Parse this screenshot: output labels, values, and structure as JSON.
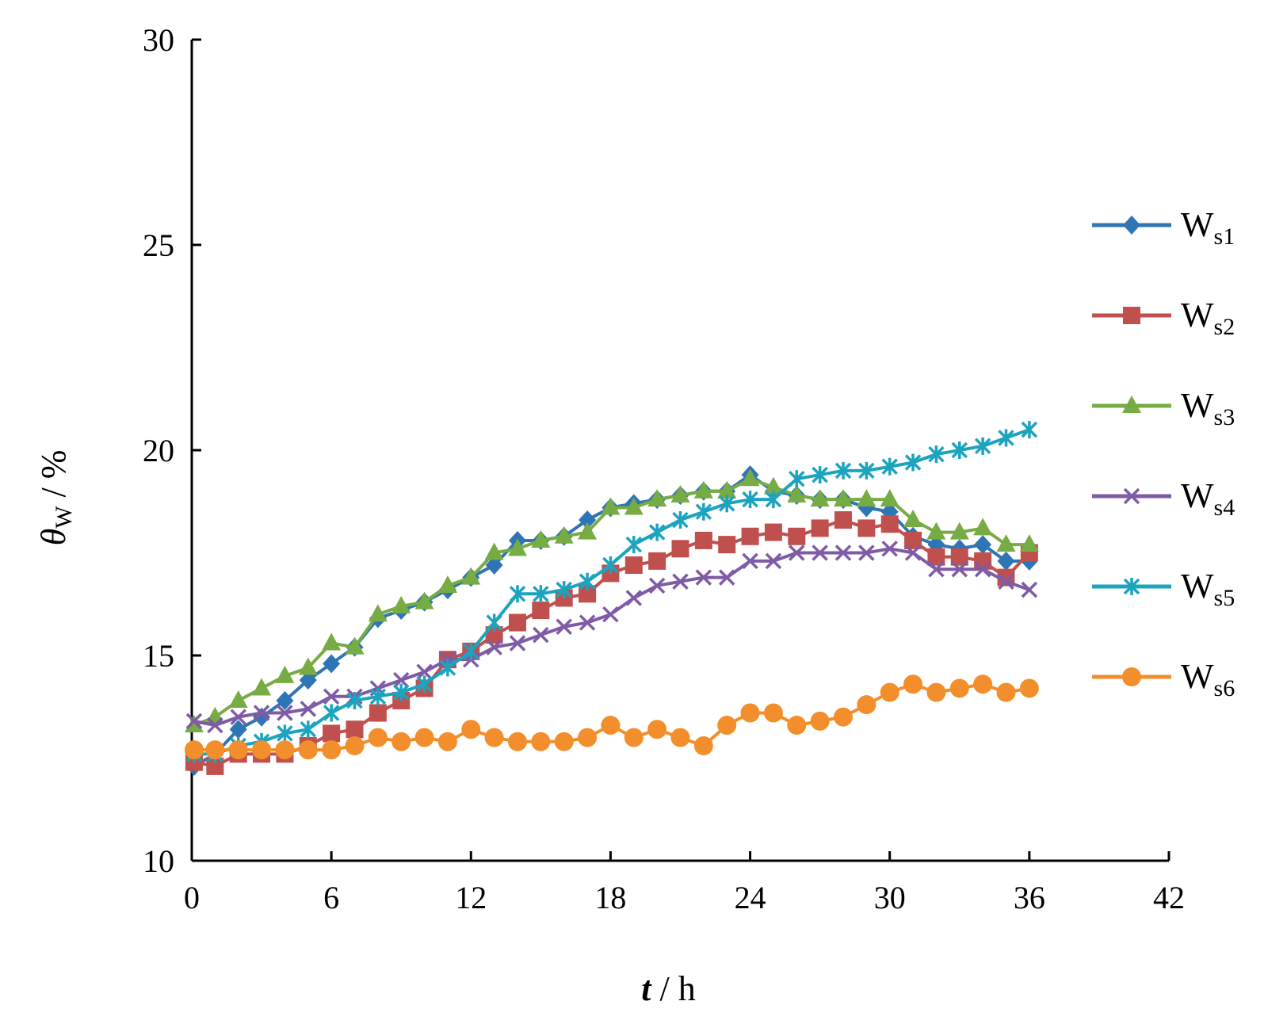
{
  "chart_data": {
    "type": "line",
    "title": "",
    "xlabel": {
      "var": "t",
      "unit": "h"
    },
    "ylabel": {
      "var": "θ",
      "sub": "W",
      "unit": "%"
    },
    "xlim": [
      0,
      42
    ],
    "ylim": [
      10,
      30
    ],
    "xticks": [
      0,
      6,
      12,
      18,
      24,
      30,
      36,
      42
    ],
    "yticks": [
      10,
      15,
      20,
      25,
      30
    ],
    "x": [
      0.1,
      1.0,
      2.0,
      3.0,
      4.0,
      5.0,
      6.0,
      7.0,
      8.0,
      9.0,
      10.0,
      11.0,
      12.0,
      13.0,
      14.0,
      15.0,
      16.0,
      17.0,
      18.0,
      19.0,
      20.0,
      21.0,
      22.0,
      23.0,
      24.0,
      25.0,
      26.0,
      27.0,
      28.0,
      29.0,
      30.0,
      31.0,
      32.0,
      33.0,
      34.0,
      35.0,
      36.0
    ],
    "series": [
      {
        "name": "W",
        "sub": "s1",
        "color": "#2e75b6",
        "marker": "diamond",
        "values": [
          12.3,
          12.6,
          13.2,
          13.5,
          13.9,
          14.4,
          14.8,
          15.2,
          15.9,
          16.1,
          16.3,
          16.6,
          16.9,
          17.2,
          17.8,
          17.8,
          17.9,
          18.3,
          18.6,
          18.7,
          18.8,
          18.9,
          19.0,
          19.0,
          19.4,
          19.0,
          18.9,
          18.8,
          18.8,
          18.6,
          18.5,
          17.9,
          17.7,
          17.6,
          17.7,
          17.3,
          17.3
        ]
      },
      {
        "name": "W",
        "sub": "s2",
        "color": "#c0504d",
        "marker": "square",
        "values": [
          12.4,
          12.3,
          12.6,
          12.6,
          12.6,
          12.8,
          13.1,
          13.2,
          13.6,
          13.9,
          14.2,
          14.9,
          15.1,
          15.5,
          15.8,
          16.1,
          16.4,
          16.5,
          17.0,
          17.2,
          17.3,
          17.6,
          17.8,
          17.7,
          17.9,
          18.0,
          17.9,
          18.1,
          18.3,
          18.1,
          18.2,
          17.8,
          17.4,
          17.4,
          17.3,
          16.9,
          17.5
        ]
      },
      {
        "name": "W",
        "sub": "s3",
        "color": "#77ab43",
        "marker": "triangle",
        "values": [
          13.3,
          13.5,
          13.9,
          14.2,
          14.5,
          14.7,
          15.3,
          15.2,
          16.0,
          16.2,
          16.3,
          16.7,
          16.9,
          17.5,
          17.6,
          17.8,
          17.9,
          18.0,
          18.6,
          18.6,
          18.8,
          18.9,
          19.0,
          19.0,
          19.3,
          19.1,
          18.9,
          18.8,
          18.8,
          18.8,
          18.8,
          18.3,
          18.0,
          18.0,
          18.1,
          17.7,
          17.7
        ]
      },
      {
        "name": "W",
        "sub": "s4",
        "color": "#7f5ba6",
        "marker": "x",
        "values": [
          13.4,
          13.3,
          13.5,
          13.6,
          13.6,
          13.7,
          14.0,
          14.0,
          14.2,
          14.4,
          14.6,
          14.9,
          14.9,
          15.2,
          15.3,
          15.5,
          15.7,
          15.8,
          16.0,
          16.4,
          16.7,
          16.8,
          16.9,
          16.9,
          17.3,
          17.3,
          17.5,
          17.5,
          17.5,
          17.5,
          17.6,
          17.5,
          17.1,
          17.1,
          17.1,
          16.8,
          16.6
        ]
      },
      {
        "name": "W",
        "sub": "s5",
        "color": "#1ca4be",
        "marker": "asterisk",
        "values": [
          12.6,
          12.6,
          12.8,
          12.9,
          13.1,
          13.2,
          13.6,
          13.9,
          14.0,
          14.1,
          14.3,
          14.7,
          15.1,
          15.8,
          16.5,
          16.5,
          16.6,
          16.8,
          17.2,
          17.7,
          18.0,
          18.3,
          18.5,
          18.7,
          18.8,
          18.8,
          19.3,
          19.4,
          19.5,
          19.5,
          19.6,
          19.7,
          19.9,
          20.0,
          20.1,
          20.3,
          20.5
        ]
      },
      {
        "name": "W",
        "sub": "s6",
        "color": "#f28e2b",
        "marker": "circle",
        "values": [
          12.7,
          12.7,
          12.7,
          12.7,
          12.7,
          12.7,
          12.7,
          12.8,
          13.0,
          12.9,
          13.0,
          12.9,
          13.2,
          13.0,
          12.9,
          12.9,
          12.9,
          13.0,
          13.3,
          13.0,
          13.2,
          13.0,
          12.8,
          13.3,
          13.6,
          13.6,
          13.3,
          13.4,
          13.5,
          13.8,
          14.1,
          14.3,
          14.1,
          14.2,
          14.3,
          14.1,
          14.2
        ]
      }
    ],
    "grid": false,
    "legend": "right"
  }
}
